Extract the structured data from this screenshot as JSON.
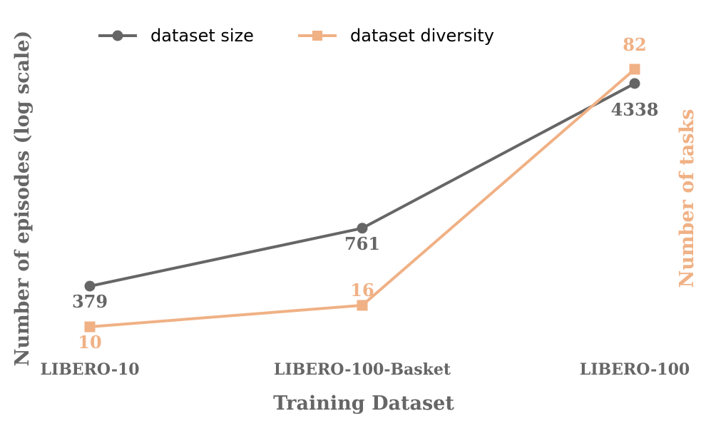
{
  "chart_data": {
    "type": "line",
    "categories": [
      "LIBERO-10",
      "LIBERO-100-Basket",
      "LIBERO-100"
    ],
    "xlabel": "Training Dataset",
    "ylabel_left": "Number of episodes (log scale)",
    "ylabel_right": "Number of tasks",
    "left_scale": "log",
    "right_scale": "linear",
    "grid": false,
    "legend_position": "top",
    "series": [
      {
        "name": "dataset size",
        "axis": "left",
        "values": [
          379,
          761,
          4338
        ],
        "labels": [
          "379",
          "761",
          "4338"
        ],
        "color": "#666666",
        "marker": "circle"
      },
      {
        "name": "dataset diversity",
        "axis": "right",
        "values": [
          10,
          16,
          82
        ],
        "labels": [
          "10",
          "16",
          "82"
        ],
        "color": "#f0b185",
        "marker": "square"
      }
    ]
  }
}
